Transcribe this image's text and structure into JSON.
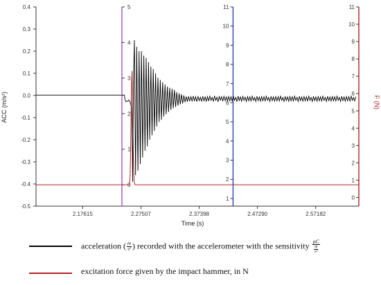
{
  "chart_data": {
    "type": "line",
    "xlabel": "Time (s)",
    "ylabel_left": "ACC (m/s²)",
    "ylabel_right": "F (N)",
    "x_ticks": [
      "2.17615",
      "2.27507",
      "2.37398",
      "2.47290",
      "2.57182"
    ],
    "x_tick_values": [
      2.17615,
      2.27507,
      2.37398,
      2.4729,
      2.57182
    ],
    "xlim": [
      2.097,
      2.645
    ],
    "acc_axis": {
      "ticks": [
        "0.4",
        "0.3",
        "0.2",
        "0.1",
        "0.0",
        "-0.1",
        "-0.2",
        "-0.3",
        "-0.4",
        "-0.5"
      ],
      "ylim": [
        -0.5,
        0.4
      ]
    },
    "force_axis_1": {
      "ticks": [
        "5",
        "4",
        "3",
        "2",
        "1",
        "0"
      ],
      "ylim": [
        -0.6,
        5
      ]
    },
    "force_axis_2": {
      "ticks": [
        "11",
        "10",
        "9",
        "8",
        "7",
        "6",
        "5",
        "4",
        "3",
        "2",
        "1"
      ],
      "ylim": [
        0.6,
        11
      ]
    },
    "force_axis_3": {
      "ticks": [
        "11",
        "10",
        "9",
        "8",
        "7",
        "6",
        "5",
        "4",
        "3",
        "2",
        "1",
        "0"
      ],
      "ylim": [
        -0.5,
        11
      ]
    },
    "cursor_x": [
      2.2428,
      2.4315
    ],
    "series": [
      {
        "name": "acceleration (m/s²) recorded with the accelerometer with the sensitivity",
        "axis": "acc",
        "color": "#000000",
        "points": [
          [
            2.097,
            0.002
          ],
          [
            2.247,
            0.002
          ],
          [
            2.2478,
            -0.015
          ],
          [
            2.2496,
            -0.028
          ],
          [
            2.252,
            -0.026
          ],
          [
            2.2545,
            -0.02
          ],
          [
            2.257,
            -0.032
          ],
          [
            2.2588,
            -0.05
          ],
          [
            2.26,
            -0.14
          ],
          [
            2.261,
            -0.39
          ],
          [
            2.2625,
            0.08
          ],
          [
            2.264,
            0.25
          ],
          [
            2.266,
            -0.36
          ],
          [
            2.268,
            0.22
          ],
          [
            2.27,
            -0.34
          ],
          [
            2.272,
            0.2
          ],
          [
            2.274,
            -0.31
          ],
          [
            2.276,
            0.2
          ],
          [
            2.278,
            -0.28
          ],
          [
            2.28,
            0.18
          ],
          [
            2.282,
            -0.25
          ],
          [
            2.284,
            0.17
          ],
          [
            2.286,
            -0.23
          ],
          [
            2.288,
            0.15
          ],
          [
            2.29,
            -0.2
          ],
          [
            2.292,
            0.13
          ],
          [
            2.294,
            -0.18
          ],
          [
            2.296,
            0.12
          ],
          [
            2.298,
            -0.16
          ],
          [
            2.3,
            0.1
          ],
          [
            2.302,
            -0.14
          ],
          [
            2.304,
            0.08
          ],
          [
            2.306,
            -0.12
          ],
          [
            2.308,
            0.07
          ],
          [
            2.31,
            -0.11
          ],
          [
            2.312,
            0.06
          ],
          [
            2.314,
            -0.095
          ],
          [
            2.316,
            0.05
          ],
          [
            2.318,
            -0.085
          ],
          [
            2.32,
            0.04
          ],
          [
            2.322,
            -0.075
          ],
          [
            2.324,
            0.035
          ],
          [
            2.326,
            -0.065
          ],
          [
            2.328,
            0.03
          ],
          [
            2.33,
            -0.058
          ],
          [
            2.332,
            0.025
          ],
          [
            2.334,
            -0.052
          ],
          [
            2.336,
            0.015
          ],
          [
            2.338,
            -0.046
          ],
          [
            2.34,
            0.01
          ],
          [
            2.342,
            -0.04
          ],
          [
            2.344,
            0.005
          ],
          [
            2.346,
            -0.036
          ],
          [
            2.348,
            0.0
          ],
          [
            2.35,
            -0.03
          ],
          [
            2.352,
            -0.005
          ],
          [
            2.354,
            -0.028
          ],
          [
            2.356,
            -0.004
          ],
          [
            2.358,
            -0.026
          ],
          [
            2.36,
            -0.006
          ],
          [
            2.362,
            -0.025
          ],
          [
            2.364,
            -0.003
          ],
          [
            2.366,
            -0.024
          ],
          [
            2.368,
            -0.006
          ],
          [
            2.37,
            -0.028
          ],
          [
            2.372,
            -0.005
          ],
          [
            2.374,
            -0.023
          ],
          [
            2.376,
            -0.008
          ],
          [
            2.378,
            -0.027
          ],
          [
            2.38,
            -0.004
          ],
          [
            2.382,
            -0.024
          ],
          [
            2.384,
            -0.007
          ],
          [
            2.386,
            -0.026
          ],
          [
            2.388,
            -0.005
          ],
          [
            2.39,
            -0.025
          ],
          [
            2.392,
            -0.003
          ],
          [
            2.394,
            -0.022
          ],
          [
            2.396,
            -0.009
          ],
          [
            2.398,
            -0.027
          ],
          [
            2.4,
            -0.002
          ],
          [
            2.402,
            -0.022
          ],
          [
            2.404,
            -0.008
          ],
          [
            2.406,
            -0.028
          ],
          [
            2.408,
            -0.005
          ],
          [
            2.41,
            -0.021
          ],
          [
            2.412,
            -0.006
          ],
          [
            2.414,
            -0.026
          ],
          [
            2.416,
            -0.004
          ],
          [
            2.418,
            -0.023
          ],
          [
            2.42,
            -0.007
          ],
          [
            2.422,
            -0.025
          ],
          [
            2.424,
            -0.005
          ],
          [
            2.426,
            -0.024
          ],
          [
            2.428,
            -0.006
          ],
          [
            2.43,
            -0.026
          ],
          [
            2.432,
            -0.004
          ],
          [
            2.434,
            -0.022
          ],
          [
            2.436,
            -0.009
          ],
          [
            2.438,
            -0.028
          ],
          [
            2.44,
            -0.003
          ],
          [
            2.442,
            -0.023
          ],
          [
            2.444,
            -0.007
          ],
          [
            2.446,
            -0.026
          ],
          [
            2.448,
            -0.004
          ],
          [
            2.45,
            -0.022
          ],
          [
            2.452,
            -0.008
          ],
          [
            2.454,
            -0.027
          ],
          [
            2.456,
            -0.005
          ],
          [
            2.458,
            -0.024
          ],
          [
            2.46,
            -0.006
          ],
          [
            2.462,
            -0.025
          ],
          [
            2.464,
            -0.003
          ],
          [
            2.466,
            -0.022
          ],
          [
            2.468,
            -0.009
          ],
          [
            2.47,
            -0.027
          ],
          [
            2.472,
            -0.004
          ],
          [
            2.474,
            -0.023
          ],
          [
            2.476,
            -0.007
          ],
          [
            2.478,
            -0.026
          ],
          [
            2.48,
            -0.005
          ],
          [
            2.482,
            -0.024
          ],
          [
            2.484,
            -0.006
          ],
          [
            2.486,
            -0.025
          ],
          [
            2.488,
            -0.003
          ],
          [
            2.49,
            -0.022
          ],
          [
            2.492,
            -0.009
          ],
          [
            2.494,
            -0.027
          ],
          [
            2.496,
            -0.004
          ],
          [
            2.498,
            -0.023
          ],
          [
            2.5,
            -0.007
          ],
          [
            2.502,
            -0.026
          ],
          [
            2.504,
            -0.005
          ],
          [
            2.506,
            -0.024
          ],
          [
            2.508,
            -0.006
          ],
          [
            2.51,
            -0.025
          ],
          [
            2.512,
            -0.003
          ],
          [
            2.514,
            -0.022
          ],
          [
            2.516,
            -0.009
          ],
          [
            2.518,
            -0.027
          ],
          [
            2.52,
            -0.004
          ],
          [
            2.522,
            -0.023
          ],
          [
            2.524,
            -0.007
          ],
          [
            2.526,
            -0.026
          ],
          [
            2.528,
            -0.005
          ],
          [
            2.53,
            -0.024
          ],
          [
            2.532,
            -0.006
          ],
          [
            2.534,
            -0.025
          ],
          [
            2.536,
            -0.003
          ],
          [
            2.538,
            -0.022
          ],
          [
            2.54,
            -0.009
          ],
          [
            2.542,
            -0.027
          ],
          [
            2.544,
            -0.004
          ],
          [
            2.546,
            -0.023
          ],
          [
            2.548,
            -0.007
          ],
          [
            2.55,
            -0.026
          ],
          [
            2.552,
            -0.005
          ],
          [
            2.554,
            -0.024
          ],
          [
            2.556,
            -0.006
          ],
          [
            2.558,
            -0.025
          ],
          [
            2.56,
            -0.003
          ],
          [
            2.562,
            -0.022
          ],
          [
            2.564,
            -0.009
          ],
          [
            2.566,
            -0.027
          ],
          [
            2.568,
            -0.004
          ],
          [
            2.57,
            -0.023
          ],
          [
            2.572,
            -0.007
          ],
          [
            2.574,
            -0.026
          ],
          [
            2.576,
            -0.005
          ],
          [
            2.578,
            -0.024
          ],
          [
            2.58,
            -0.006
          ],
          [
            2.582,
            -0.025
          ],
          [
            2.584,
            -0.003
          ],
          [
            2.586,
            -0.022
          ],
          [
            2.588,
            -0.009
          ],
          [
            2.59,
            -0.027
          ],
          [
            2.592,
            -0.004
          ],
          [
            2.594,
            -0.023
          ],
          [
            2.596,
            -0.007
          ],
          [
            2.598,
            -0.026
          ],
          [
            2.6,
            -0.005
          ],
          [
            2.602,
            -0.024
          ],
          [
            2.604,
            -0.006
          ],
          [
            2.606,
            -0.025
          ],
          [
            2.608,
            -0.003
          ],
          [
            2.61,
            -0.022
          ],
          [
            2.612,
            -0.009
          ],
          [
            2.614,
            -0.027
          ],
          [
            2.616,
            -0.004
          ],
          [
            2.618,
            -0.023
          ],
          [
            2.62,
            -0.007
          ],
          [
            2.622,
            -0.026
          ],
          [
            2.624,
            -0.005
          ],
          [
            2.626,
            -0.024
          ],
          [
            2.628,
            -0.006
          ],
          [
            2.63,
            -0.025
          ],
          [
            2.632,
            -0.003
          ],
          [
            2.634,
            -0.022
          ],
          [
            2.636,
            -0.009
          ],
          [
            2.638,
            -0.025
          ],
          [
            2.64,
            -0.006
          ]
        ]
      },
      {
        "name": "excitation force given by the impact hammer, in N",
        "axis": "force",
        "color": "#b22222",
        "points": [
          [
            2.097,
            0.0
          ],
          [
            2.256,
            0.0
          ],
          [
            2.2568,
            0.3
          ],
          [
            2.2578,
            1.2
          ],
          [
            2.259,
            2.8
          ],
          [
            2.26,
            3.2
          ],
          [
            2.261,
            2.0
          ],
          [
            2.2622,
            0.8
          ],
          [
            2.2635,
            0.1
          ],
          [
            2.265,
            0.0
          ],
          [
            2.645,
            0.0
          ]
        ]
      }
    ],
    "legend": {
      "acc_prefix": "acceleration (",
      "acc_unit_num": "m",
      "acc_unit_den": "s²",
      "acc_middle": ") recorded with the accelerometer with the sensitivity",
      "sens_num": "pC",
      "sens_den_num": "m",
      "sens_den_den": "s²",
      "force_label": "excitation force given by the impact hammer, in N"
    },
    "colors": {
      "acc_line": "#000000",
      "force_line": "#b22222",
      "cursor_1": "#a050c8",
      "cursor_2": "#2a3fc0",
      "right_axis": "#b22222",
      "left_axis": "#333333"
    }
  }
}
